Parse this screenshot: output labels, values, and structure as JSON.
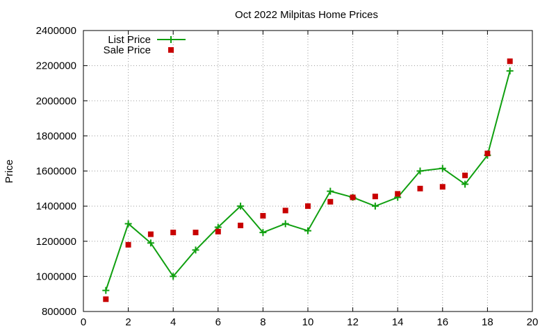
{
  "chart_data": {
    "type": "line",
    "title": "Oct 2022 Milpitas Home Prices",
    "xlabel": "",
    "ylabel": "Price",
    "xlim": [
      0,
      20
    ],
    "ylim": [
      800000,
      2400000
    ],
    "x_ticks": [
      0,
      2,
      4,
      6,
      8,
      10,
      12,
      14,
      16,
      18,
      20
    ],
    "y_ticks": [
      800000,
      1000000,
      1200000,
      1400000,
      1600000,
      1800000,
      2000000,
      2200000,
      2400000
    ],
    "grid": true,
    "legend_position": "top-left",
    "series": [
      {
        "name": "List Price",
        "style": "line-with-plus-markers",
        "color": "#0f9f0f",
        "x": [
          1,
          2,
          3,
          4,
          5,
          6,
          7,
          8,
          9,
          10,
          11,
          12,
          13,
          14,
          15,
          16,
          17,
          18,
          19
        ],
        "y": [
          920000,
          1300000,
          1190000,
          1000000,
          1150000,
          1280000,
          1400000,
          1250000,
          1300000,
          1260000,
          1485000,
          1450000,
          1400000,
          1450000,
          1600000,
          1615000,
          1525000,
          1690000,
          2170000
        ]
      },
      {
        "name": "Sale Price",
        "style": "square-markers",
        "color": "#c80000",
        "x": [
          1,
          2,
          3,
          4,
          5,
          6,
          7,
          8,
          9,
          10,
          11,
          12,
          13,
          14,
          15,
          16,
          17,
          18,
          19
        ],
        "y": [
          870000,
          1180000,
          1240000,
          1250000,
          1250000,
          1255000,
          1290000,
          1345000,
          1375000,
          1400000,
          1425000,
          1450000,
          1455000,
          1470000,
          1500000,
          1510000,
          1575000,
          1700000,
          2225000
        ]
      }
    ]
  }
}
